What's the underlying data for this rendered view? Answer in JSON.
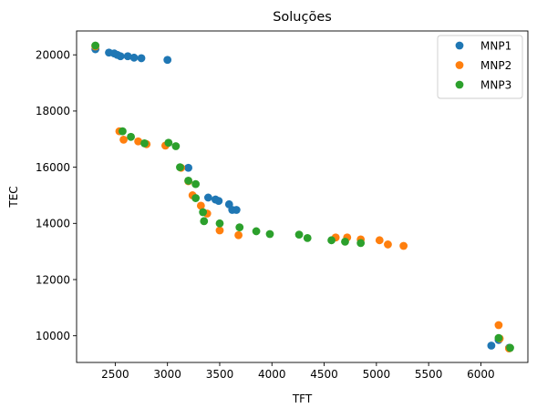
{
  "chart_data": {
    "type": "scatter",
    "title": "Soluções",
    "xlabel": "TFT",
    "ylabel": "TEC",
    "xlim": [
      2130,
      6450
    ],
    "ylim": [
      9050,
      20850
    ],
    "xticks": [
      2500,
      3000,
      3500,
      4000,
      4500,
      5000,
      5500,
      6000
    ],
    "yticks": [
      10000,
      12000,
      14000,
      16000,
      18000,
      20000
    ],
    "xtick_labels": [
      "2500",
      "3000",
      "3500",
      "4000",
      "4500",
      "5000",
      "5500",
      "6000"
    ],
    "ytick_labels": [
      "10000",
      "12000",
      "14000",
      "16000",
      "18000",
      "20000"
    ],
    "grid": false,
    "legend_position": "top-right",
    "series": [
      {
        "name": "MNP1",
        "color": "#1f77b4",
        "points": [
          [
            2310,
            20200
          ],
          [
            2440,
            20080
          ],
          [
            2490,
            20050
          ],
          [
            2520,
            20000
          ],
          [
            2550,
            19950
          ],
          [
            2620,
            19950
          ],
          [
            2680,
            19900
          ],
          [
            2750,
            19880
          ],
          [
            3000,
            19820
          ],
          [
            3200,
            15980
          ],
          [
            3390,
            14920
          ],
          [
            3460,
            14850
          ],
          [
            3490,
            14800
          ],
          [
            3590,
            14680
          ],
          [
            3620,
            14480
          ],
          [
            3660,
            14480
          ],
          [
            6100,
            9650
          ],
          [
            6170,
            9850
          ],
          [
            6270,
            9570
          ]
        ]
      },
      {
        "name": "MNP2",
        "color": "#ff7f0e",
        "points": [
          [
            2310,
            20300
          ],
          [
            2540,
            17280
          ],
          [
            2580,
            16980
          ],
          [
            2720,
            16920
          ],
          [
            2800,
            16820
          ],
          [
            2980,
            16770
          ],
          [
            3130,
            15980
          ],
          [
            3200,
            15500
          ],
          [
            3240,
            15000
          ],
          [
            3320,
            14630
          ],
          [
            3380,
            14350
          ],
          [
            3500,
            13750
          ],
          [
            3680,
            13580
          ],
          [
            4610,
            13500
          ],
          [
            4720,
            13500
          ],
          [
            4850,
            13430
          ],
          [
            5030,
            13400
          ],
          [
            5110,
            13250
          ],
          [
            5260,
            13200
          ],
          [
            6170,
            10380
          ],
          [
            6180,
            9900
          ],
          [
            6270,
            9550
          ]
        ]
      },
      {
        "name": "MNP3",
        "color": "#2ca02c",
        "points": [
          [
            2310,
            20330
          ],
          [
            2570,
            17280
          ],
          [
            2650,
            17080
          ],
          [
            2780,
            16850
          ],
          [
            3010,
            16870
          ],
          [
            3080,
            16750
          ],
          [
            3120,
            16000
          ],
          [
            3200,
            15520
          ],
          [
            3270,
            15400
          ],
          [
            3270,
            14900
          ],
          [
            3340,
            14400
          ],
          [
            3350,
            14080
          ],
          [
            3500,
            14000
          ],
          [
            3690,
            13860
          ],
          [
            3850,
            13720
          ],
          [
            3980,
            13620
          ],
          [
            4260,
            13600
          ],
          [
            4340,
            13480
          ],
          [
            4570,
            13400
          ],
          [
            4700,
            13350
          ],
          [
            4850,
            13300
          ],
          [
            6170,
            9920
          ],
          [
            6280,
            9570
          ]
        ]
      }
    ]
  }
}
